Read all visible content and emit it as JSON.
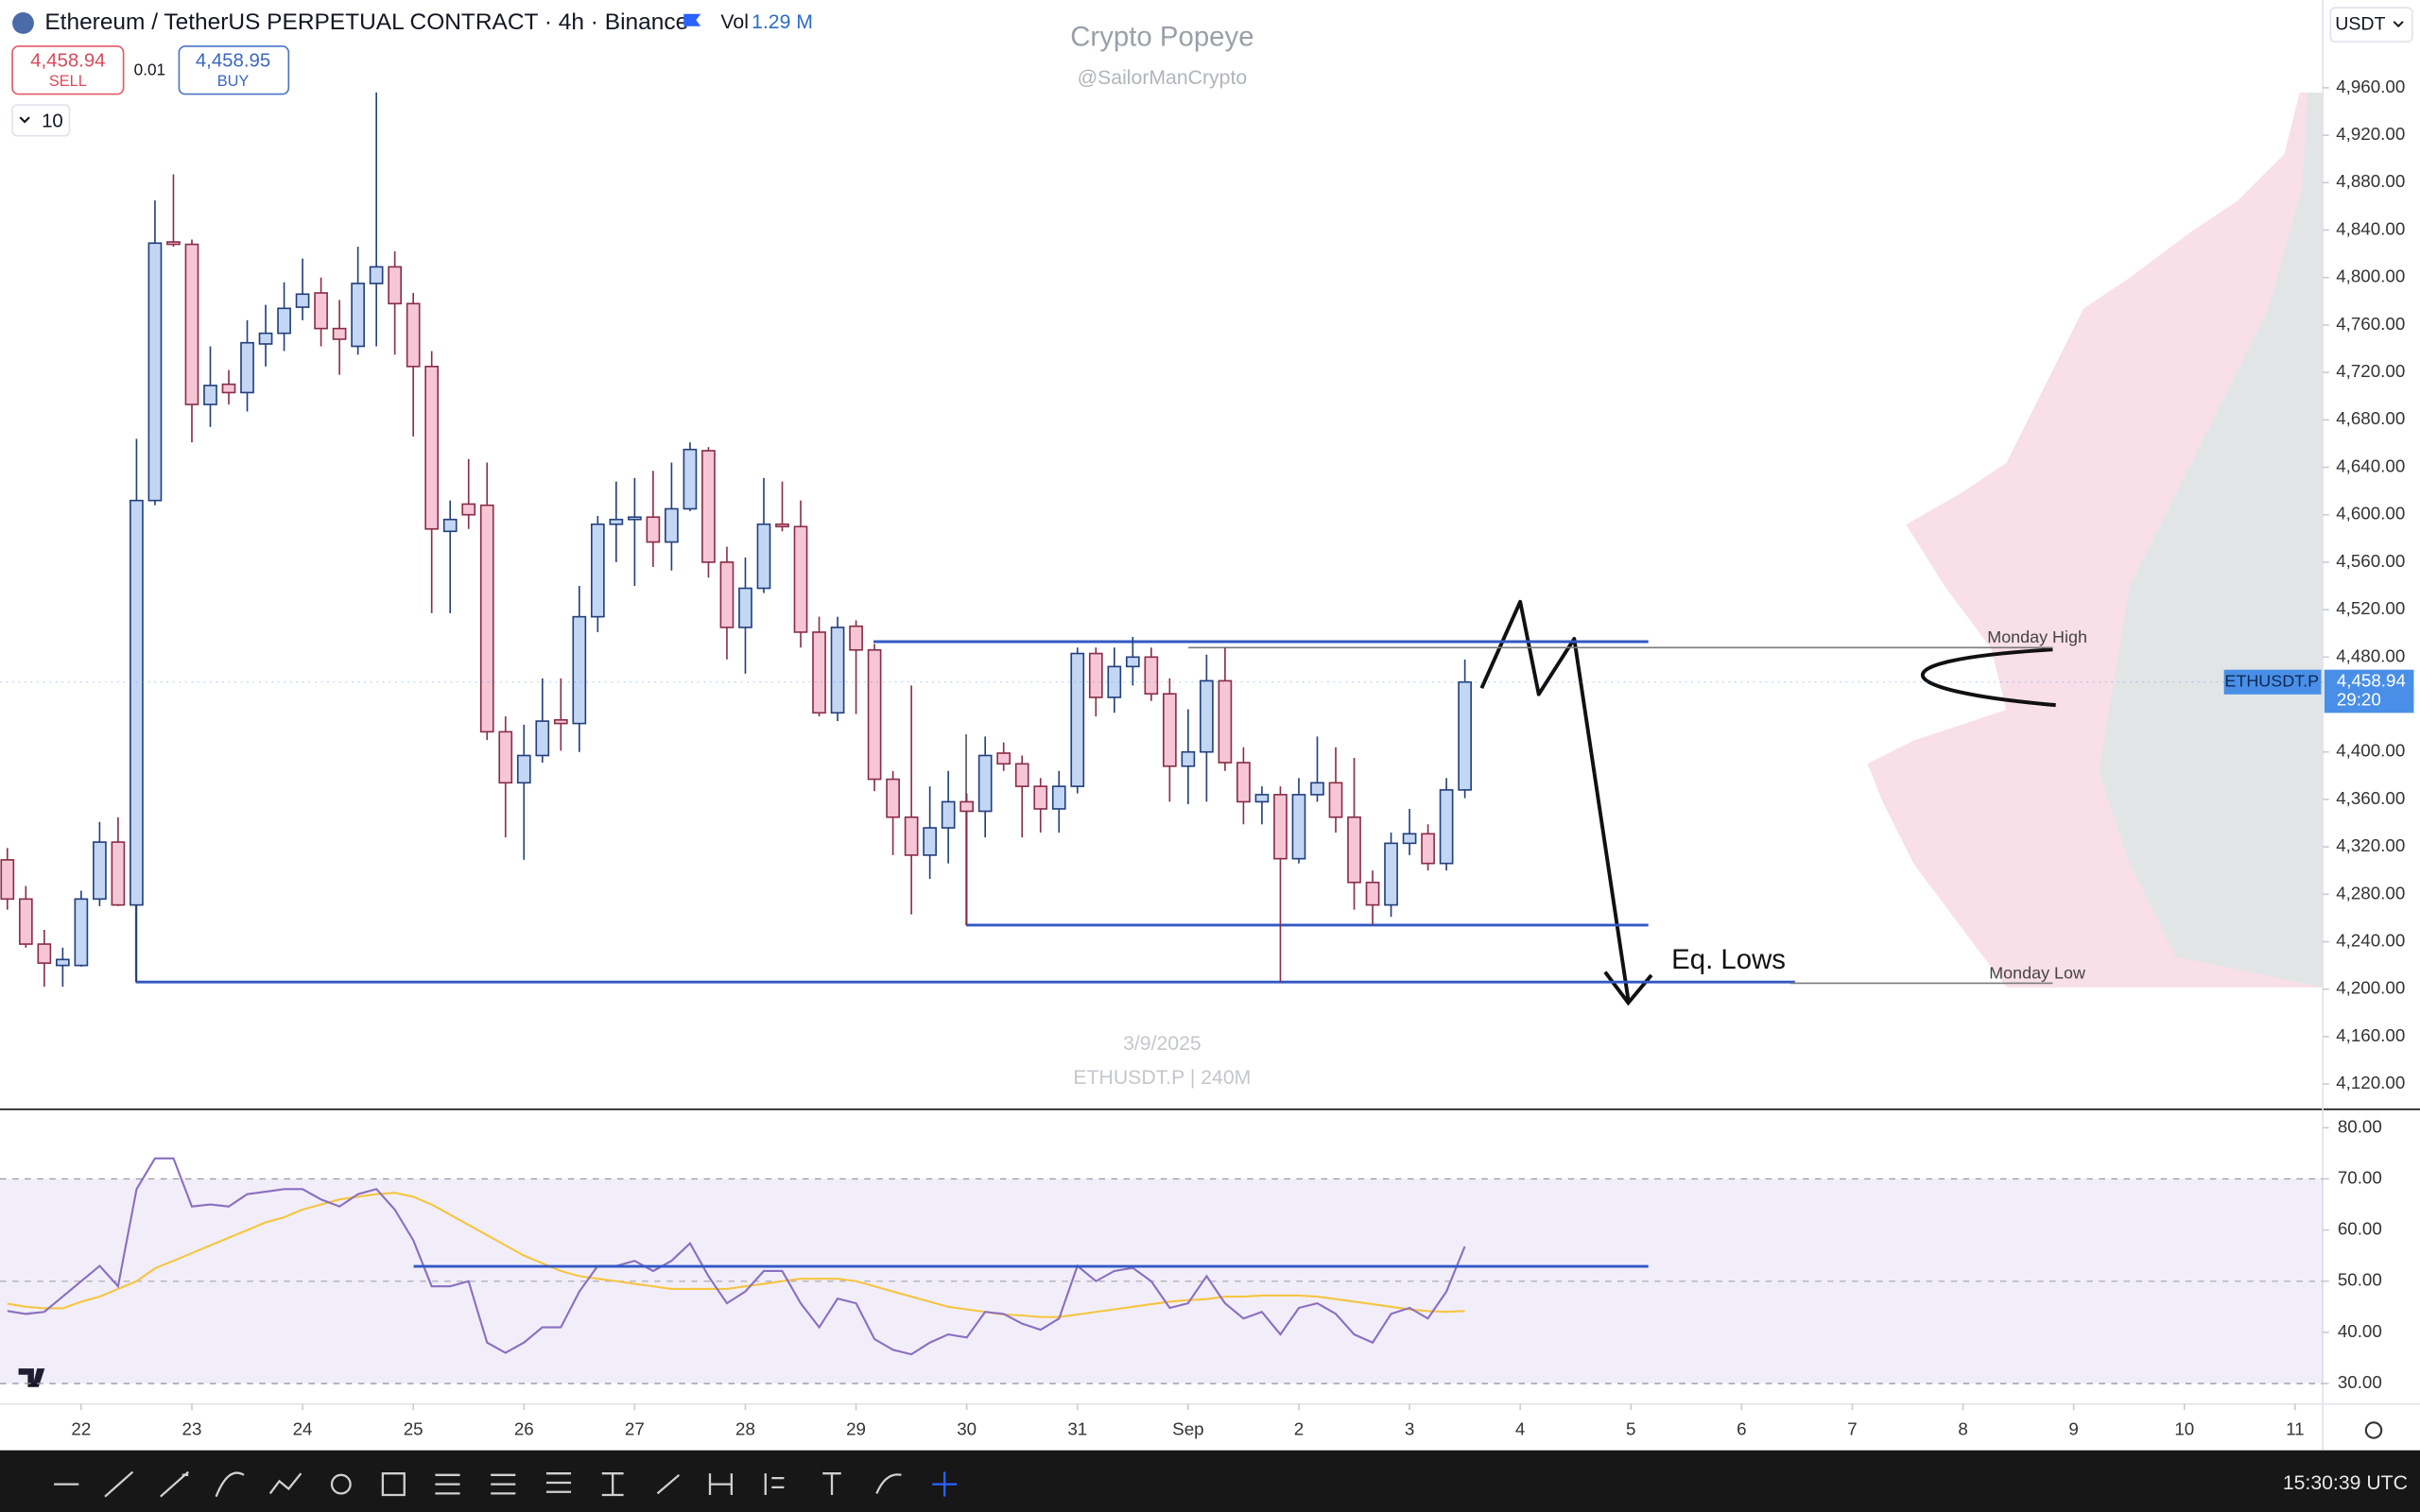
{
  "header": {
    "title": "Ethereum / TetherUS PERPETUAL CONTRACT · 4h · Binance",
    "vol_label": "Vol",
    "vol": "1.29 M",
    "sell_price": "4,458.94",
    "sell": "SELL",
    "spread": "0.01",
    "buy_price": "4,458.95",
    "buy": "BUY",
    "indicators": "10",
    "currency": "USDT"
  },
  "watermark": {
    "title": "Crypto Popeye",
    "handle": "@SailorManCrypto",
    "date": "3/9/2025",
    "symbol": "ETHUSDT.P | 240M"
  },
  "clock": "15:30:39 UTC",
  "chart_data": [
    {
      "type": "candlestick",
      "up_color": "#c3d7f5",
      "up_border": "#23407c",
      "down_color": "#f6c6d7",
      "down_border": "#8a2e46",
      "xlim": [
        -0.4,
        125.5
      ],
      "xticks": [
        {
          "value": 4,
          "label": "22"
        },
        {
          "value": 10,
          "label": "23"
        },
        {
          "value": 16,
          "label": "24"
        },
        {
          "value": 22,
          "label": "25"
        },
        {
          "value": 28,
          "label": "26"
        },
        {
          "value": 34,
          "label": "27"
        },
        {
          "value": 40,
          "label": "28"
        },
        {
          "value": 46,
          "label": "29"
        },
        {
          "value": 52,
          "label": "30"
        },
        {
          "value": 58,
          "label": "31"
        },
        {
          "value": 64,
          "label": "Sep"
        },
        {
          "value": 70,
          "label": "2"
        },
        {
          "value": 76,
          "label": "3"
        },
        {
          "value": 82,
          "label": "4"
        },
        {
          "value": 88,
          "label": "5"
        },
        {
          "value": 94,
          "label": "6"
        },
        {
          "value": 100,
          "label": "7"
        },
        {
          "value": 106,
          "label": "8"
        },
        {
          "value": 112,
          "label": "9"
        },
        {
          "value": 118,
          "label": "10"
        },
        {
          "value": 124,
          "label": "11"
        }
      ],
      "ylim": [
        4100,
        5034
      ],
      "yticks": [
        {
          "value": 4960,
          "label": "4,960.00"
        },
        {
          "value": 4920,
          "label": "4,920.00"
        },
        {
          "value": 4880,
          "label": "4,880.00"
        },
        {
          "value": 4840,
          "label": "4,840.00"
        },
        {
          "value": 4800,
          "label": "4,800.00"
        },
        {
          "value": 4760,
          "label": "4,760.00"
        },
        {
          "value": 4720,
          "label": "4,720.00"
        },
        {
          "value": 4680,
          "label": "4,680.00"
        },
        {
          "value": 4640,
          "label": "4,640.00"
        },
        {
          "value": 4600,
          "label": "4,600.00"
        },
        {
          "value": 4560,
          "label": "4,560.00"
        },
        {
          "value": 4520,
          "label": "4,520.00"
        },
        {
          "value": 4480,
          "label": "4,480.00"
        },
        {
          "value": 4400,
          "label": "4,400.00"
        },
        {
          "value": 4360,
          "label": "4,360.00"
        },
        {
          "value": 4320,
          "label": "4,320.00"
        },
        {
          "value": 4280,
          "label": "4,280.00"
        },
        {
          "value": 4240,
          "label": "4,240.00"
        },
        {
          "value": 4200,
          "label": "4,200.00"
        },
        {
          "value": 4160,
          "label": "4,160.00"
        },
        {
          "value": 4120,
          "label": "4,120.00"
        }
      ],
      "open": [
        4309,
        4276,
        4238,
        4220,
        4220,
        4276,
        4324,
        4271,
        4612,
        4830,
        4828,
        4693,
        4710,
        4703,
        4744,
        4753,
        4775,
        4787,
        4757,
        4742,
        4795,
        4809,
        4778,
        4725,
        4586,
        4609,
        4608,
        4417,
        4374,
        4397,
        4427,
        4424,
        4514,
        4592,
        4596,
        4598,
        4577,
        4605,
        4654,
        4560,
        4505,
        4538,
        4592,
        4590,
        4501,
        4433,
        4506,
        4486,
        4377,
        4345,
        4313,
        4336,
        4358,
        4350,
        4399,
        4390,
        4371,
        4352,
        4371,
        4483,
        4446,
        4472,
        4480,
        4449,
        4388,
        4400,
        4460,
        4391,
        4358,
        4364,
        4310,
        4364,
        4374,
        4345,
        4290,
        4271,
        4323,
        4331,
        4306,
        4368
      ],
      "high": [
        4319,
        4287,
        4250,
        4235,
        4283,
        4341,
        4345,
        4664,
        4865,
        4887,
        4832,
        4742,
        4722,
        4764,
        4777,
        4796,
        4816,
        4800,
        4781,
        4826,
        4956,
        4822,
        4787,
        4738,
        4612,
        4647,
        4644,
        4430,
        4423,
        4462,
        4462,
        4540,
        4599,
        4628,
        4631,
        4637,
        4644,
        4661,
        4657,
        4573,
        4564,
        4631,
        4628,
        4612,
        4514,
        4514,
        4511,
        4491,
        4384,
        4456,
        4371,
        4384,
        4365,
        4413,
        4408,
        4397,
        4378,
        4384,
        4488,
        4488,
        4488,
        4497,
        4488,
        4462,
        4436,
        4482,
        4488,
        4404,
        4371,
        4371,
        4378,
        4413,
        4404,
        4395,
        4300,
        4332,
        4352,
        4339,
        4378,
        4478
      ],
      "low": [
        4267,
        4235,
        4202,
        4202,
        4219,
        4270,
        4270,
        4206,
        4608,
        4826,
        4661,
        4674,
        4693,
        4687,
        4725,
        4738,
        4764,
        4742,
        4718,
        4735,
        4742,
        4735,
        4666,
        4517,
        4517,
        4588,
        4410,
        4328,
        4309,
        4391,
        4401,
        4400,
        4501,
        4560,
        4540,
        4556,
        4553,
        4603,
        4547,
        4478,
        4466,
        4534,
        4586,
        4488,
        4430,
        4426,
        4432,
        4367,
        4313,
        4263,
        4293,
        4306,
        4254,
        4328,
        4384,
        4328,
        4332,
        4332,
        4365,
        4430,
        4433,
        4456,
        4443,
        4358,
        4356,
        4358,
        4384,
        4339,
        4339,
        4206,
        4306,
        4358,
        4332,
        4267,
        4254,
        4261,
        4313,
        4300,
        4300,
        4361
      ],
      "close": [
        4276,
        4238,
        4222,
        4225,
        4276,
        4324,
        4271,
        4612,
        4829,
        4828,
        4693,
        4709,
        4703,
        4745,
        4753,
        4774,
        4786,
        4757,
        4748,
        4795,
        4809,
        4778,
        4725,
        4588,
        4596,
        4600,
        4417,
        4374,
        4397,
        4426,
        4424,
        4514,
        4592,
        4596,
        4598,
        4577,
        4605,
        4655,
        4560,
        4505,
        4538,
        4592,
        4590,
        4501,
        4433,
        4505,
        4486,
        4377,
        4345,
        4313,
        4336,
        4358,
        4350,
        4397,
        4390,
        4371,
        4352,
        4371,
        4483,
        4446,
        4472,
        4480,
        4449,
        4388,
        4400,
        4460,
        4391,
        4358,
        4364,
        4310,
        4364,
        4374,
        4345,
        4290,
        4271,
        4323,
        4331,
        4306,
        4368,
        4458.94
      ],
      "levels": [
        4493,
        4254,
        4206
      ],
      "level_color": "#3358c4",
      "annotations": [
        {
          "text": "Monday High",
          "value": 4488
        },
        {
          "text": "Monday Low",
          "value": 4205
        },
        {
          "text": "Eq. Lows"
        }
      ],
      "price_tag": {
        "symbol": "ETHUSDT.P",
        "price": {
          "value": 4458.94,
          "label": "4,458.94"
        },
        "countdown": "29:20",
        "color": "#4a8fe7"
      }
    },
    {
      "type": "line",
      "xlim": [
        -0.4,
        125.5
      ],
      "ylim": [
        26,
        83.3
      ],
      "yticks": [
        {
          "value": 80,
          "label": "80.00"
        },
        {
          "value": 70,
          "label": "70.00"
        },
        {
          "value": 60,
          "label": "60.00"
        },
        {
          "value": 50,
          "label": "50.00"
        },
        {
          "value": 40,
          "label": "40.00"
        },
        {
          "value": 30,
          "label": "30.00"
        }
      ],
      "band": [
        30,
        70
      ],
      "midline": 50,
      "levels": [
        52.9
      ],
      "level_color": "#3358c4",
      "series": [
        {
          "color": "#8a6fc0",
          "values": [
            44.2,
            43.6,
            44,
            47,
            50,
            53,
            49,
            68,
            74,
            74,
            64.6,
            65,
            64.6,
            67,
            67.5,
            68,
            68,
            66,
            64.6,
            67,
            68,
            64,
            58,
            49,
            49,
            50,
            38,
            36,
            38,
            41,
            41,
            48,
            53,
            53,
            54,
            52,
            54,
            57.4,
            51,
            45.7,
            48,
            52,
            52,
            45.7,
            41,
            46.6,
            45.7,
            38.7,
            36.6,
            35.7,
            38,
            39.6,
            39,
            44,
            43.6,
            41.7,
            40.5,
            42.7,
            53,
            50,
            52,
            52.6,
            50,
            44.8,
            45.7,
            51,
            45.7,
            42.7,
            44,
            39.6,
            44.8,
            45.7,
            43.6,
            39.6,
            38,
            43.6,
            44.8,
            42.7,
            48,
            56.8
          ]
        },
        {
          "color": "#f5c542",
          "values": [
            45.6,
            45,
            44.7,
            44.7,
            46,
            47,
            48.5,
            50,
            52.5,
            54,
            55.5,
            57,
            58.5,
            60,
            61.5,
            62.5,
            64,
            65,
            66,
            66.5,
            67,
            67.3,
            66.5,
            65,
            63,
            61,
            59,
            57,
            55,
            53.5,
            52,
            51,
            50.5,
            50,
            49.5,
            49,
            48.5,
            48.5,
            48.5,
            48.5,
            49,
            49.5,
            50,
            50.5,
            50.5,
            50.5,
            50,
            49,
            48,
            47,
            46,
            45,
            44.5,
            44,
            43.5,
            43.3,
            43,
            43,
            43.5,
            44,
            44.5,
            45,
            45.5,
            46,
            46.3,
            46.5,
            47,
            47,
            47.2,
            47.2,
            47.2,
            47,
            46.5,
            46,
            45.5,
            45,
            44.5,
            44.2,
            44,
            44.2
          ]
        }
      ]
    }
  ]
}
